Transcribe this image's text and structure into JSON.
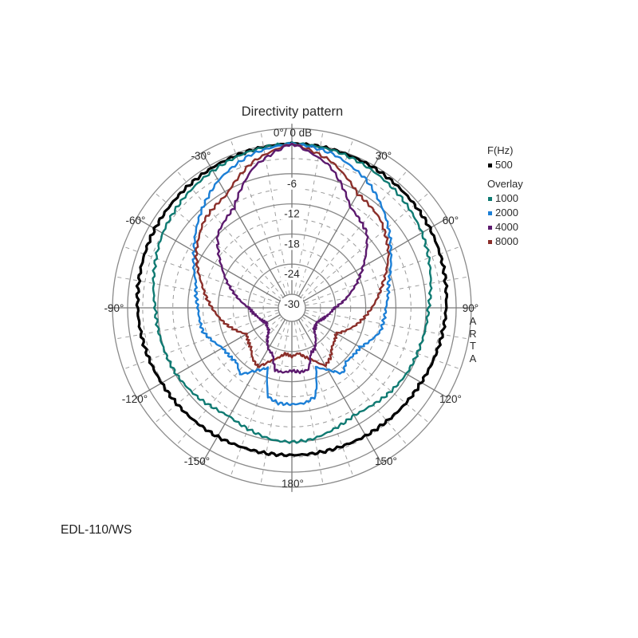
{
  "chart_data": {
    "type": "polar-line",
    "title": "Directivity pattern",
    "top_label": "0°/ 0 dB",
    "model": "EDL-110/WS",
    "watermark": "ARTA",
    "radial_axis": {
      "unit": "dB",
      "range": [
        -30,
        0
      ],
      "solid_rings": [
        0,
        -6,
        -12,
        -18,
        -24,
        -30
      ],
      "dashed_rings": [
        -3,
        -9,
        -15,
        -21,
        -27
      ],
      "tick_labels": [
        "-6",
        "-12",
        "-18",
        "-24",
        "-30"
      ]
    },
    "angular_axis": {
      "unit": "degrees",
      "solid_spokes_every": 30,
      "dashed_spokes_every": 10,
      "tick_labels": [
        "0°",
        "30°",
        "60°",
        "90°",
        "120°",
        "150°",
        "180°",
        "-150°",
        "-120°",
        "-90°",
        "-60°",
        "-30°"
      ]
    },
    "legend": {
      "header": "F(Hz)",
      "overlay_header": "Overlay"
    },
    "angles": [
      0,
      15,
      30,
      45,
      60,
      75,
      90,
      105,
      120,
      135,
      142,
      150,
      158,
      165,
      172,
      180
    ],
    "series": [
      {
        "name": "500",
        "color": "#000000",
        "group": "main",
        "values": [
          0,
          -0.2,
          -0.4,
          -0.7,
          -1.0,
          -1.5,
          -2.0,
          -2.5,
          -3.0,
          -3.2,
          -3.3,
          -3.3,
          -3.4,
          -3.4,
          -3.4,
          -3.4
        ]
      },
      {
        "name": "1000",
        "color": "#0f7a72",
        "group": "overlay",
        "values": [
          0,
          -0.3,
          -1.0,
          -1.8,
          -2.8,
          -4.2,
          -5.5,
          -6.0,
          -6.4,
          -7.2,
          -7.7,
          -8.0,
          -7.4,
          -6.8,
          -6.2,
          -6.0
        ]
      },
      {
        "name": "2000",
        "color": "#1c7fd6",
        "group": "overlay",
        "values": [
          0,
          -1.0,
          -3.2,
          -6.5,
          -10.0,
          -12.8,
          -14.0,
          -14.5,
          -17.0,
          -17.5,
          -16.2,
          -18.5,
          -20.0,
          -14.5,
          -13.6,
          -13.5
        ]
      },
      {
        "name": "4000",
        "color": "#5c1a6e",
        "group": "overlay",
        "values": [
          0,
          -3.5,
          -9.5,
          -11.6,
          -16.4,
          -20.5,
          -24.2,
          -25.8,
          -27.0,
          -26.5,
          -25.0,
          -23.5,
          -22.8,
          -20.0,
          -19.8,
          -20.2
        ]
      },
      {
        "name": "8000",
        "color": "#8b2f2a",
        "group": "overlay",
        "values": [
          0,
          -2.5,
          -6.5,
          -7.8,
          -10.5,
          -14.0,
          -16.8,
          -19.5,
          -22.5,
          -21.5,
          -20.2,
          -19.4,
          -21.5,
          -22.6,
          -23.6,
          -23.0
        ]
      }
    ]
  }
}
